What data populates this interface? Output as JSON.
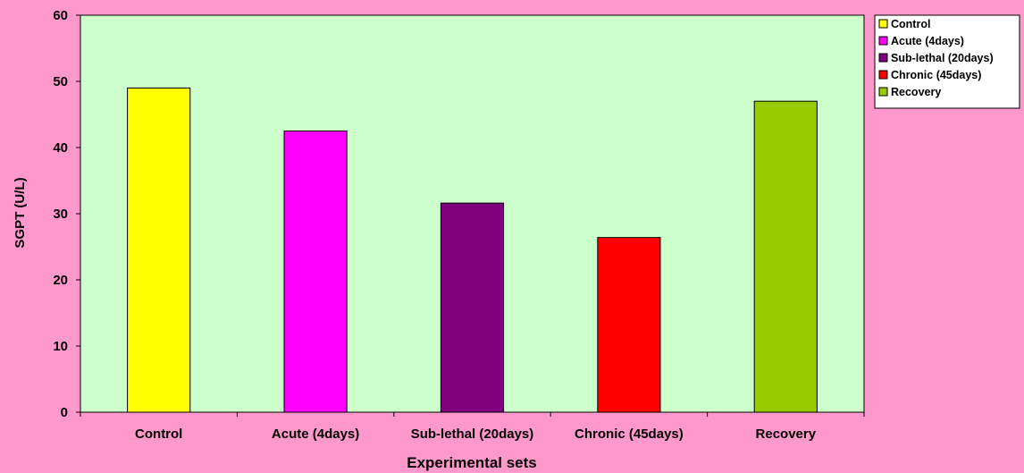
{
  "chart_data": {
    "type": "bar",
    "categories": [
      "Control",
      "Acute (4days)",
      "Sub-lethal (20days)",
      "Chronic (45days)",
      "Recovery"
    ],
    "values": [
      49,
      42.5,
      31.6,
      26.4,
      47
    ],
    "colors": [
      "#ffff00",
      "#ff00ff",
      "#800080",
      "#ff0000",
      "#99cc00"
    ],
    "xlabel": "Experimental sets",
    "ylabel": "SGPT (U/L)",
    "ylim": [
      0,
      60
    ],
    "yticks": [
      0,
      10,
      20,
      30,
      40,
      50,
      60
    ],
    "grid": false,
    "legend": {
      "placement": "top-right",
      "entries": [
        "Control",
        "Acute (4days)",
        "Sub-lethal (20days)",
        "Chronic (45days)",
        "Recovery"
      ]
    },
    "plot_background": "#ccffcc",
    "figure_background": "#ff99cc"
  }
}
